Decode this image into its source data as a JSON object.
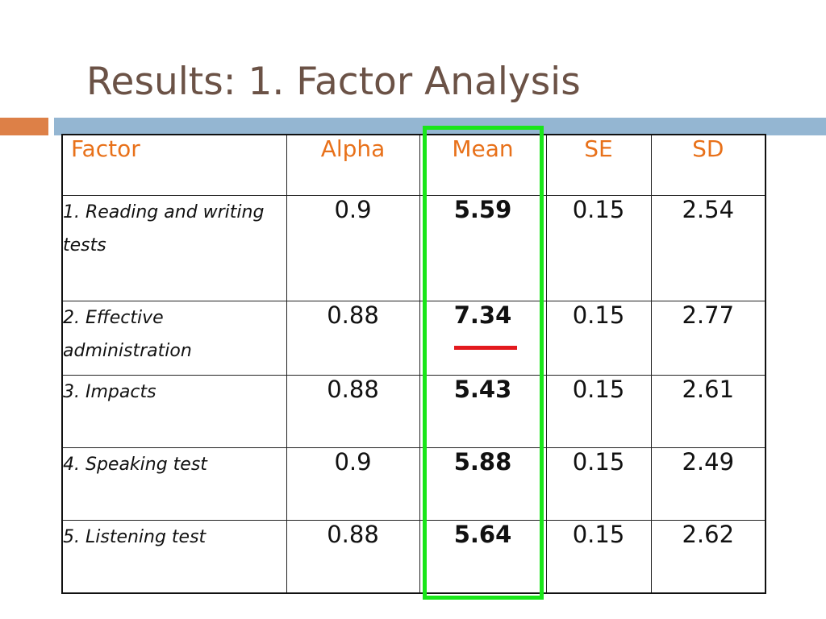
{
  "slide": {
    "title": "Results: 1. Factor Analysis"
  },
  "table": {
    "headers": {
      "factor": "Factor",
      "alpha": "Alpha",
      "mean": "Mean",
      "se": "SE",
      "sd": "SD"
    },
    "rows": [
      {
        "factor": "1. Reading and writing tests",
        "alpha": "0.9",
        "mean": "5.59",
        "se": "0.15",
        "sd": "2.54"
      },
      {
        "factor": "2. Effective administration",
        "alpha": "0.88",
        "mean": "7.34",
        "se": "0.15",
        "sd": "2.77"
      },
      {
        "factor": "3. Impacts",
        "alpha": "0.88",
        "mean": "5.43",
        "se": "0.15",
        "sd": "2.61"
      },
      {
        "factor": "4. Speaking test",
        "alpha": "0.9",
        "mean": "5.88",
        "se": "0.15",
        "sd": "2.49"
      },
      {
        "factor": "5. Listening test",
        "alpha": "0.88",
        "mean": "5.64",
        "se": "0.15",
        "sd": "2.62"
      }
    ]
  },
  "colors": {
    "title": "#6b5246",
    "header_text": "#e8711a",
    "accent_orange": "#dd8047",
    "accent_blue": "#94b6d2",
    "mean_highlight": "#19e619",
    "max_mean_underline": "#e3191e"
  }
}
